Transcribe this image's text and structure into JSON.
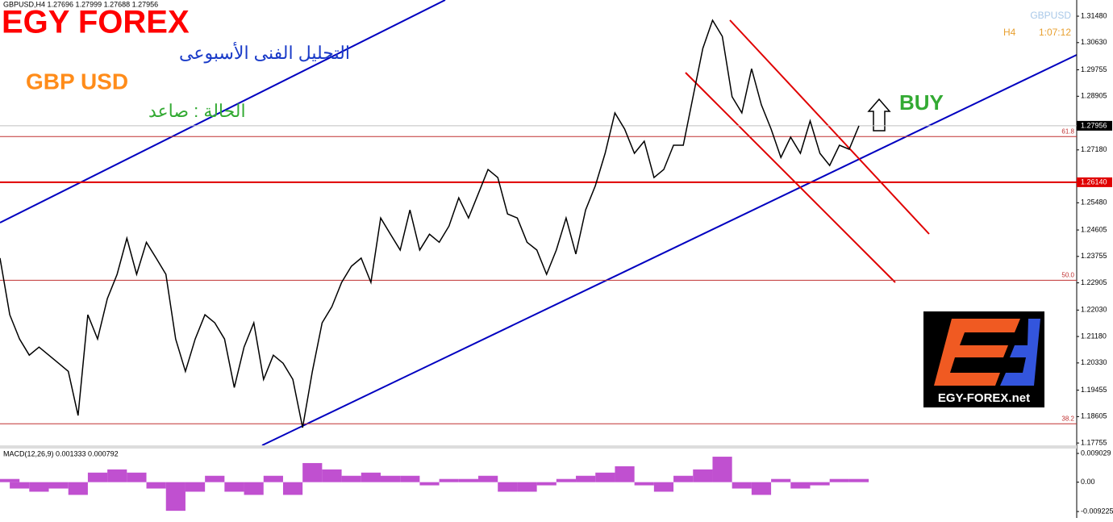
{
  "branding": {
    "brand": "EGY FOREX",
    "subtitle": "التحليل الفنى الأسبوعى",
    "pair": "GBP USD",
    "status": "الحالة : صاعد",
    "signal": "BUY",
    "logo_text": "EGY-FOREX.net"
  },
  "chart_data": [
    {
      "type": "line",
      "header": "GBPUSD,H4  1.27696 1.27999 1.27688 1.27956",
      "symbol": "GBPUSD",
      "timeframe": "H4",
      "timer": "1:07:12",
      "color": "#000000",
      "values": [
        1.237,
        1.2188,
        1.211,
        1.2058,
        1.2084,
        1.2058,
        1.2032,
        1.2006,
        1.1864,
        1.2188,
        1.211,
        1.224,
        1.2318,
        1.2434,
        1.2318,
        1.2421,
        1.237,
        1.2318,
        1.211,
        1.2006,
        1.211,
        1.2188,
        1.2162,
        1.211,
        1.1954,
        1.2084,
        1.2162,
        1.198,
        1.2058,
        1.2032,
        1.198,
        1.1825,
        1.2006,
        1.2162,
        1.2214,
        1.2292,
        1.2344,
        1.237,
        1.2292,
        1.2499,
        1.2447,
        1.2396,
        1.2525,
        1.2396,
        1.2447,
        1.2421,
        1.2473,
        1.2564,
        1.2499,
        1.2577,
        1.2655,
        1.2629,
        1.2512,
        1.2499,
        1.2421,
        1.2396,
        1.2318,
        1.2396,
        1.2499,
        1.2383,
        1.2525,
        1.2603,
        1.2707,
        1.2837,
        1.2785,
        1.2707,
        1.2746,
        1.2629,
        1.2655,
        1.2733,
        1.2733,
        1.2889,
        1.3044,
        1.3135,
        1.3083,
        1.2889,
        1.2837,
        1.2979,
        1.2863,
        1.2785,
        1.2694,
        1.2759,
        1.2707,
        1.2811,
        1.2707,
        1.2668,
        1.2733,
        1.272,
        1.27956
      ],
      "ylim": [
        1.1768,
        1.32
      ],
      "yticks": [
        {
          "value": 1.3148,
          "label": "1.31480"
        },
        {
          "value": 1.3063,
          "label": "1.30630"
        },
        1.29755,
        {
          "value": 1.28905,
          "label": "1.28905"
        },
        {
          "value": 1.2718,
          "label": "1.27180"
        },
        {
          "value": 1.2548,
          "label": "1.25480"
        },
        1.24605,
        1.23755,
        1.22905,
        {
          "value": 1.2203,
          "label": "1.22030"
        },
        {
          "value": 1.2118,
          "label": "1.21180"
        },
        {
          "value": 1.2033,
          "label": "1.20330"
        },
        1.19455,
        1.18605,
        1.17755
      ],
      "hlines": [
        {
          "value": 1.2761,
          "label": "61.8"
        },
        {
          "value": 1.2299,
          "label": "50.0"
        },
        {
          "value": 1.18375,
          "label": "38.2"
        }
      ],
      "support": {
        "value": 1.2614,
        "label": "1.26140"
      },
      "last_price": 1.27956
    },
    {
      "type": "histogram",
      "title": "MACD(12,26,9) 0.001333 0.000792",
      "color": "#c050d0",
      "values": [
        0.001,
        -0.002,
        -0.003,
        -0.002,
        -0.004,
        0.003,
        0.004,
        0.003,
        -0.002,
        -0.009,
        -0.003,
        0.002,
        -0.003,
        -0.004,
        0.002,
        -0.004,
        0.006,
        0.004,
        0.002,
        0.003,
        0.002,
        0.002,
        -0.001,
        0.001,
        0.001,
        0.002,
        -0.003,
        -0.003,
        -0.001,
        0.001,
        0.002,
        0.003,
        0.005,
        -0.001,
        -0.003,
        0.002,
        0.004,
        0.008,
        -0.002,
        -0.004,
        0.001,
        -0.002,
        -0.001,
        0.001,
        0.001
      ],
      "ylim": [
        -0.01125,
        0.01055
      ],
      "yticks": [
        0.009029,
        {
          "value": 0,
          "label": "0.00"
        },
        -0.009225
      ]
    }
  ]
}
